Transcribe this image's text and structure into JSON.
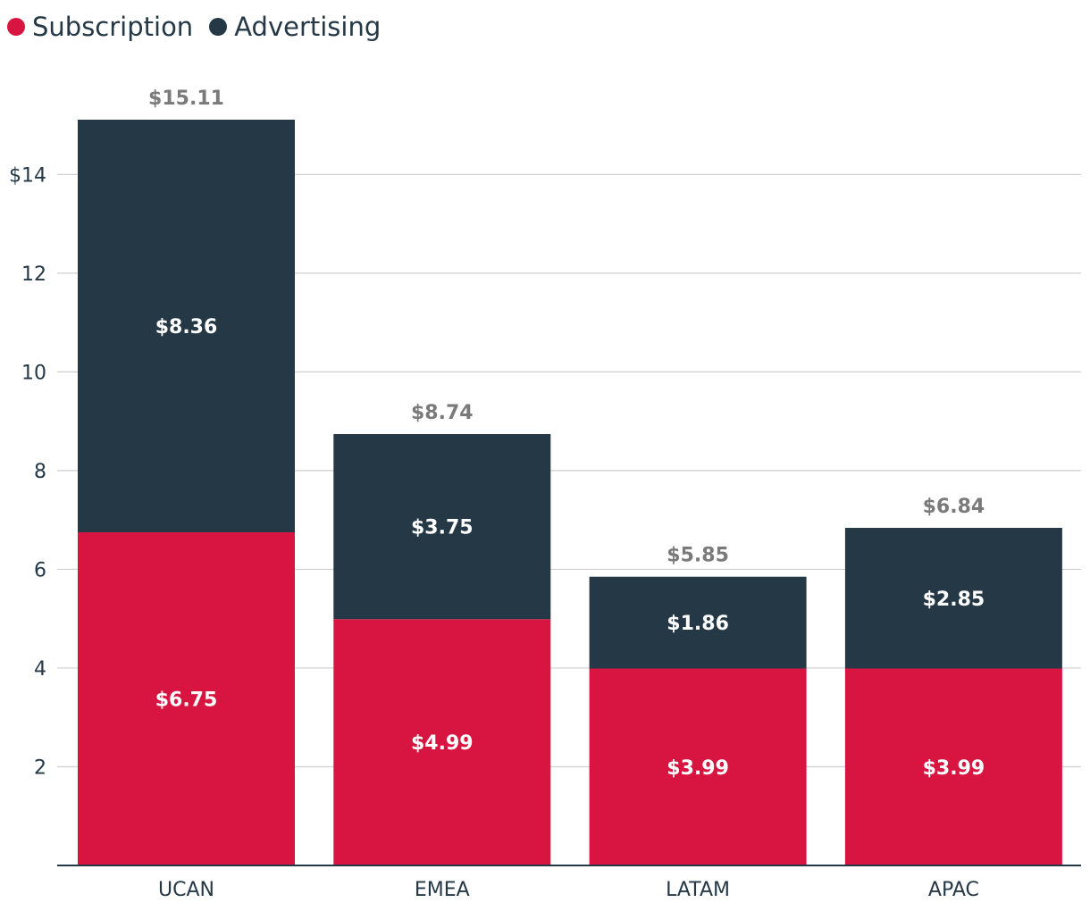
{
  "legend": {
    "items": [
      {
        "label": "Subscription",
        "color": "#d81540"
      },
      {
        "label": "Advertising",
        "color": "#253845"
      }
    ]
  },
  "chart_data": {
    "type": "bar",
    "stacked": true,
    "categories": [
      "UCAN",
      "EMEA",
      "LATAM",
      "APAC"
    ],
    "series": [
      {
        "name": "Subscription",
        "color": "#d81540",
        "values": [
          6.75,
          4.99,
          3.99,
          3.99
        ],
        "labels": [
          "$6.75",
          "$4.99",
          "$3.99",
          "$3.99"
        ]
      },
      {
        "name": "Advertising",
        "color": "#253845",
        "values": [
          8.36,
          3.75,
          1.86,
          2.85
        ],
        "labels": [
          "$8.36",
          "$3.75",
          "$1.86",
          "$2.85"
        ]
      }
    ],
    "totals": [
      15.11,
      8.74,
      5.85,
      6.84
    ],
    "total_labels": [
      "$15.11",
      "$8.74",
      "$5.85",
      "$6.84"
    ],
    "yticks": [
      {
        "value": 2,
        "label": "2"
      },
      {
        "value": 4,
        "label": "4"
      },
      {
        "value": 6,
        "label": "6"
      },
      {
        "value": 8,
        "label": "8"
      },
      {
        "value": 10,
        "label": "10"
      },
      {
        "value": 12,
        "label": "12"
      },
      {
        "value": 14,
        "label": "$14"
      }
    ],
    "ylim": [
      0,
      15.11
    ],
    "grid": true,
    "legend_position": "top-left",
    "title": "",
    "xlabel": "",
    "ylabel": ""
  }
}
